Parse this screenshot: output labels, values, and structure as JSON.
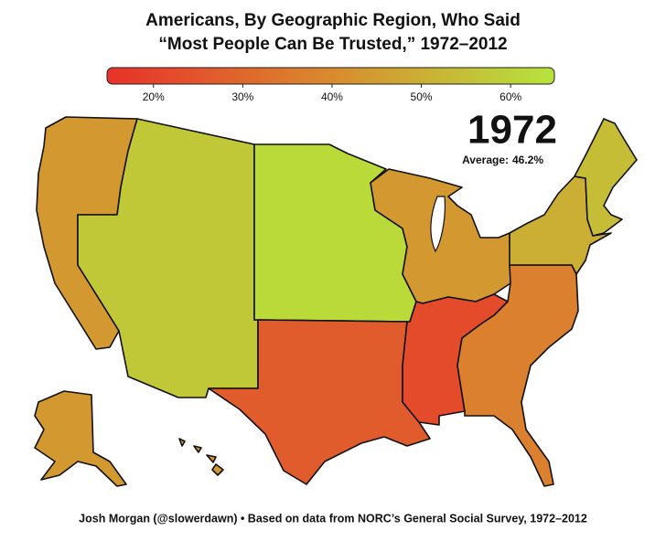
{
  "title_line_1": "Americans, By Geographic Region, Who Said",
  "title_line_2": "“Most People Can Be Trusted,” 1972–2012",
  "year": "1972",
  "average_label": "Average:",
  "average": {
    "value": 46.2,
    "label": "46.2%"
  },
  "scale_range": [
    14.8,
    64.9
  ],
  "scale_ticks": [
    {
      "value": 20,
      "label": "20%"
    },
    {
      "value": 30,
      "label": "30%"
    },
    {
      "value": 40,
      "label": "40%"
    },
    {
      "value": 50,
      "label": "50%"
    },
    {
      "value": 60,
      "label": "60%"
    }
  ],
  "scale_colors": [
    "#e8312a",
    "#d98a2e",
    "#b6e43c"
  ],
  "region_values": [
    44,
    57,
    62,
    44,
    27,
    22,
    37,
    50,
    54
  ],
  "footer": "Josh Morgan (@slowerdawn) • Based on data from NORC’s General Social Survey, 1972–2012"
}
